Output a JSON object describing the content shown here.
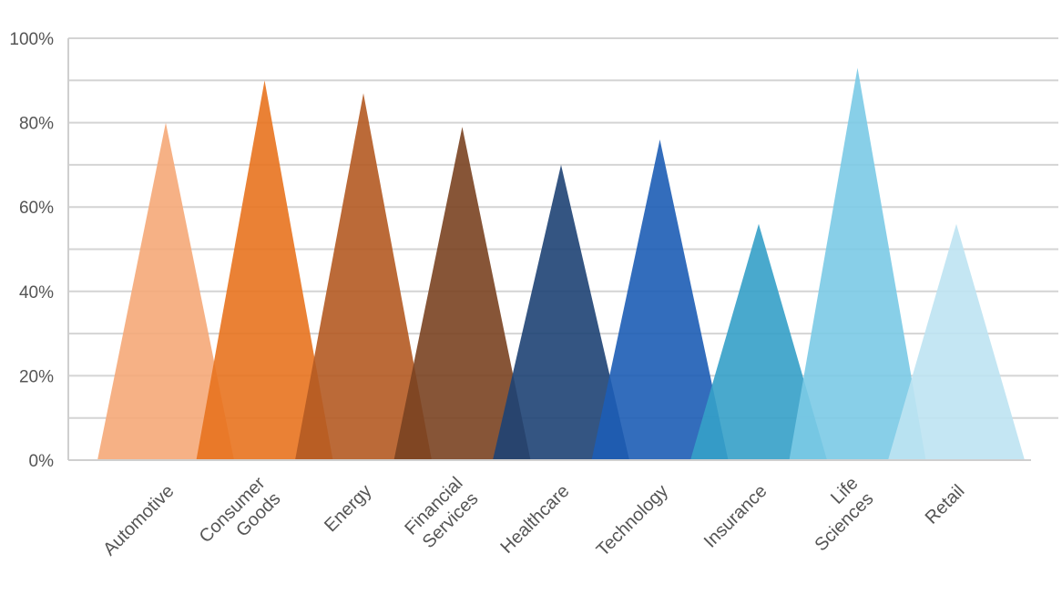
{
  "chart_data": {
    "type": "bar",
    "style": "triangle-peaks",
    "title": "",
    "xlabel": "",
    "ylabel": "",
    "ylim": [
      0,
      100
    ],
    "yticks": [
      "0%",
      "20%",
      "40%",
      "60%",
      "80%",
      "100%"
    ],
    "grid": true,
    "categories": [
      [
        "Automotive"
      ],
      [
        "Consumer",
        "Goods"
      ],
      [
        "Energy"
      ],
      [
        "Financial",
        "Services"
      ],
      [
        "Healthcare"
      ],
      [
        "Technology"
      ],
      [
        "Insurance"
      ],
      [
        "Life",
        "Sciences"
      ],
      [
        "Retail"
      ]
    ],
    "values": [
      80,
      90,
      87,
      79,
      70,
      76,
      56,
      93,
      56
    ],
    "colors": [
      "#F5A978",
      "#E8731F",
      "#B45A22",
      "#7A4321",
      "#1E4274",
      "#1D5DB5",
      "#35A0C8",
      "#7BCAE5",
      "#BEE3F2"
    ]
  }
}
